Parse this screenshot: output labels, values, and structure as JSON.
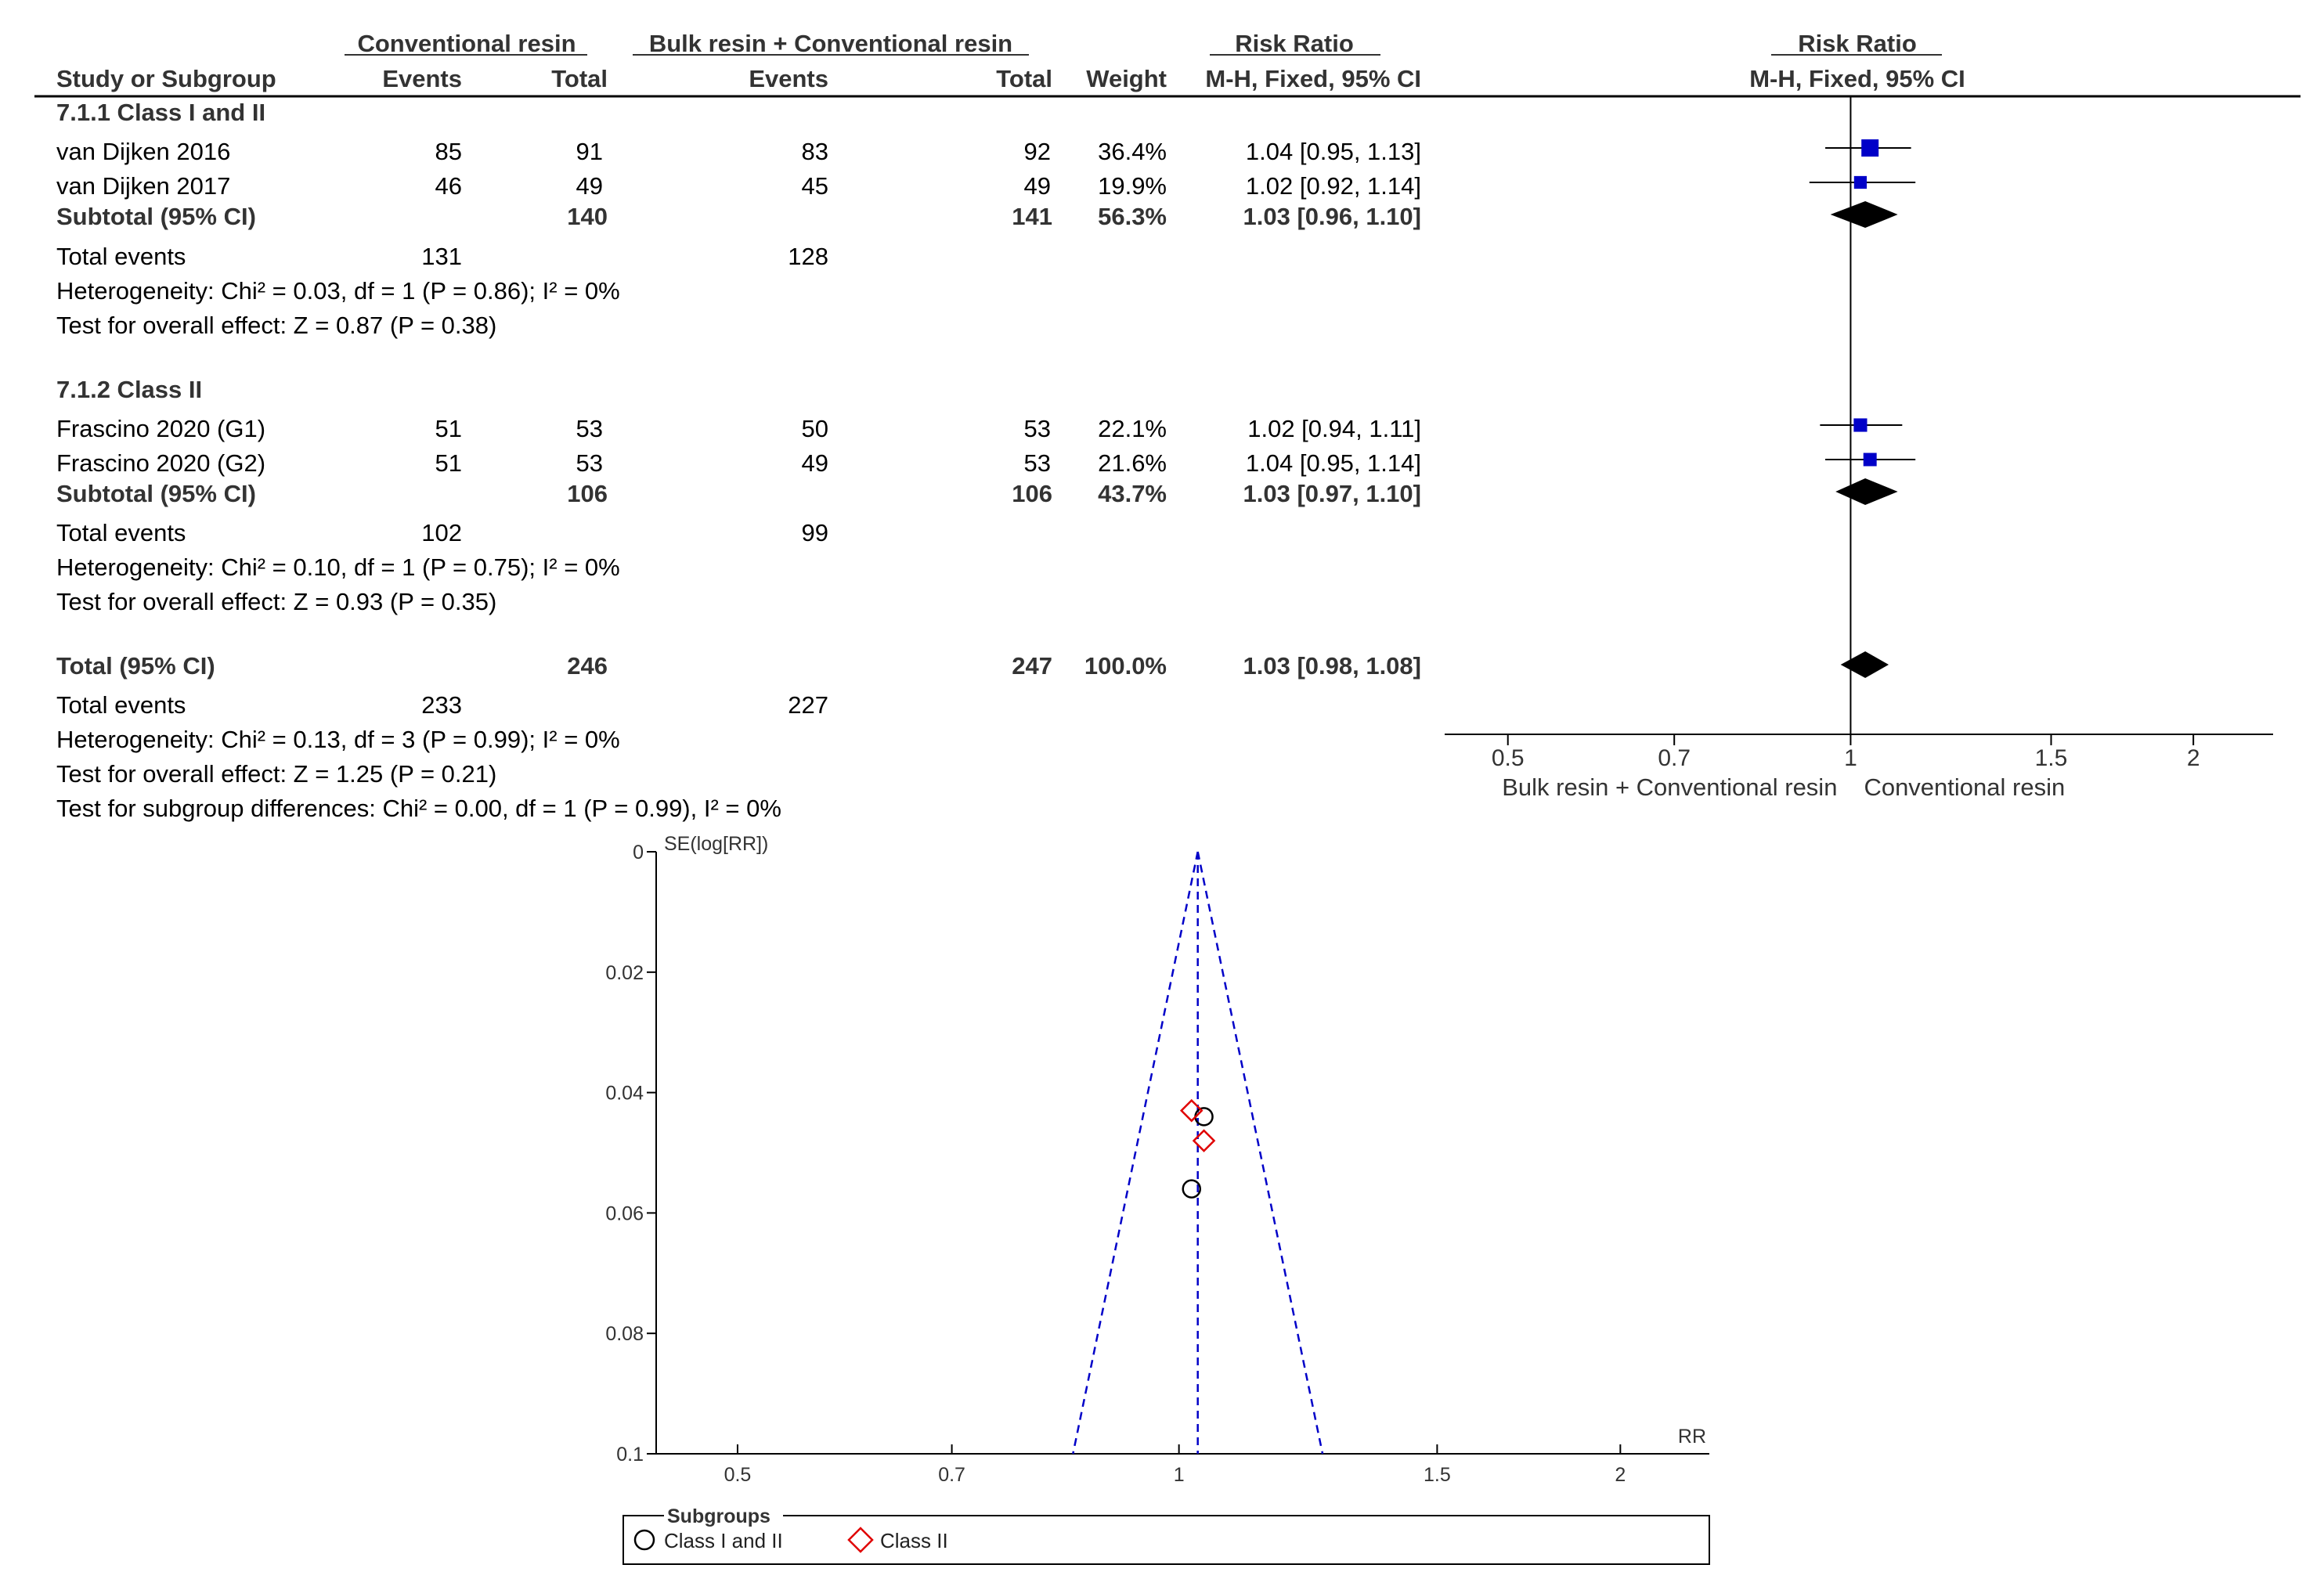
{
  "chart_data": [
    {
      "type": "forest",
      "header": {
        "group1_name": "Conventional resin",
        "group2_name": "Bulk resin + Conventional resin",
        "study_col": "Study or Subgroup",
        "events": "Events",
        "total": "Total",
        "weight": "Weight",
        "rr_title": "Risk Ratio",
        "rr_method": "M-H, Fixed, 95% CI"
      },
      "subgroups": [
        {
          "title": "7.1.1 Class I and II",
          "studies": [
            {
              "name": "van Dijken 2016",
              "e1": "85",
              "t1": "91",
              "e2": "83",
              "t2": "92",
              "weight": "36.4%",
              "ci_text": "1.04 [0.95, 1.13]",
              "rr": 1.04,
              "lo": 0.95,
              "hi": 1.13,
              "w": 36.4
            },
            {
              "name": "van Dijken 2017",
              "e1": "46",
              "t1": "49",
              "e2": "45",
              "t2": "49",
              "weight": "19.9%",
              "ci_text": "1.02 [0.92, 1.14]",
              "rr": 1.02,
              "lo": 0.92,
              "hi": 1.14,
              "w": 19.9
            }
          ],
          "subtotal": {
            "label": "Subtotal (95% CI)",
            "t1": "140",
            "t2": "141",
            "weight": "56.3%",
            "ci_text": "1.03 [0.96, 1.10]",
            "rr": 1.03,
            "lo": 0.96,
            "hi": 1.1
          },
          "total_events": {
            "label": "Total events",
            "e1": "131",
            "e2": "128"
          },
          "heterogeneity": "Heterogeneity: Chi² = 0.03, df = 1 (P = 0.86); I² = 0%",
          "overall": "Test for overall effect: Z = 0.87 (P = 0.38)"
        },
        {
          "title": "7.1.2 Class II",
          "studies": [
            {
              "name": "Frascino 2020 (G1)",
              "e1": "51",
              "t1": "53",
              "e2": "50",
              "t2": "53",
              "weight": "22.1%",
              "ci_text": "1.02 [0.94, 1.11]",
              "rr": 1.02,
              "lo": 0.94,
              "hi": 1.11,
              "w": 22.1
            },
            {
              "name": "Frascino 2020 (G2)",
              "e1": "51",
              "t1": "53",
              "e2": "49",
              "t2": "53",
              "weight": "21.6%",
              "ci_text": "1.04 [0.95, 1.14]",
              "rr": 1.04,
              "lo": 0.95,
              "hi": 1.14,
              "w": 21.6
            }
          ],
          "subtotal": {
            "label": "Subtotal (95% CI)",
            "t1": "106",
            "t2": "106",
            "weight": "43.7%",
            "ci_text": "1.03 [0.97, 1.10]",
            "rr": 1.03,
            "lo": 0.97,
            "hi": 1.1
          },
          "total_events": {
            "label": "Total events",
            "e1": "102",
            "e2": "99"
          },
          "heterogeneity": "Heterogeneity: Chi² = 0.10, df = 1 (P = 0.75); I² = 0%",
          "overall": "Test for overall effect: Z = 0.93 (P = 0.35)"
        }
      ],
      "total": {
        "label": "Total (95% CI)",
        "t1": "246",
        "t2": "247",
        "weight": "100.0%",
        "ci_text": "1.03 [0.98, 1.08]",
        "rr": 1.03,
        "lo": 0.98,
        "hi": 1.08,
        "total_events": {
          "label": "Total events",
          "e1": "233",
          "e2": "227"
        },
        "heterogeneity": "Heterogeneity: Chi² = 0.13, df = 3 (P = 0.99); I² = 0%",
        "overall": "Test for overall effect: Z = 1.25 (P = 0.21)",
        "subgroup_diff": "Test for subgroup differences: Chi² = 0.00, df = 1 (P = 0.99), I² = 0%"
      },
      "axis": {
        "scale": "log",
        "xlim": [
          0.44,
          2.35
        ],
        "ticks": [
          {
            "v": 0.5,
            "l": "0.5"
          },
          {
            "v": 0.7,
            "l": "0.7"
          },
          {
            "v": 1,
            "l": "1"
          },
          {
            "v": 1.5,
            "l": "1.5"
          },
          {
            "v": 2,
            "l": "2"
          }
        ],
        "left_label": "Bulk resin + Conventional resin",
        "right_label": "Conventional resin"
      },
      "colors": {
        "square": "#0000c8",
        "diamond": "#000000"
      }
    },
    {
      "type": "funnel",
      "ylabel": "SE(log[RR])",
      "xlabel": "RR",
      "xscale": "log",
      "xlim": [
        0.44,
        2.3
      ],
      "ylim": [
        0,
        0.1
      ],
      "yticks": [
        {
          "v": 0,
          "l": "0"
        },
        {
          "v": 0.02,
          "l": "0.02"
        },
        {
          "v": 0.04,
          "l": "0.04"
        },
        {
          "v": 0.06,
          "l": "0.06"
        },
        {
          "v": 0.08,
          "l": "0.08"
        },
        {
          "v": 0.1,
          "l": "0.1"
        }
      ],
      "xticks": [
        {
          "v": 0.5,
          "l": "0.5"
        },
        {
          "v": 0.7,
          "l": "0.7"
        },
        {
          "v": 1,
          "l": "1"
        },
        {
          "v": 1.5,
          "l": "1.5"
        },
        {
          "v": 2,
          "l": "2"
        }
      ],
      "pooled": 1.03,
      "points": [
        {
          "rr": 1.04,
          "se": 0.044,
          "group": "Class I and II"
        },
        {
          "rr": 1.02,
          "se": 0.056,
          "group": "Class I and II"
        },
        {
          "rr": 1.02,
          "se": 0.043,
          "group": "Class II"
        },
        {
          "rr": 1.04,
          "se": 0.048,
          "group": "Class II"
        }
      ],
      "legend": {
        "title": "Subgroups",
        "items": [
          {
            "label": "Class I and II",
            "marker": "circle",
            "color": "#000000"
          },
          {
            "label": "Class II",
            "marker": "diamond",
            "color": "#e00000"
          }
        ]
      },
      "colors": {
        "funnel": "#0000c8"
      }
    }
  ]
}
